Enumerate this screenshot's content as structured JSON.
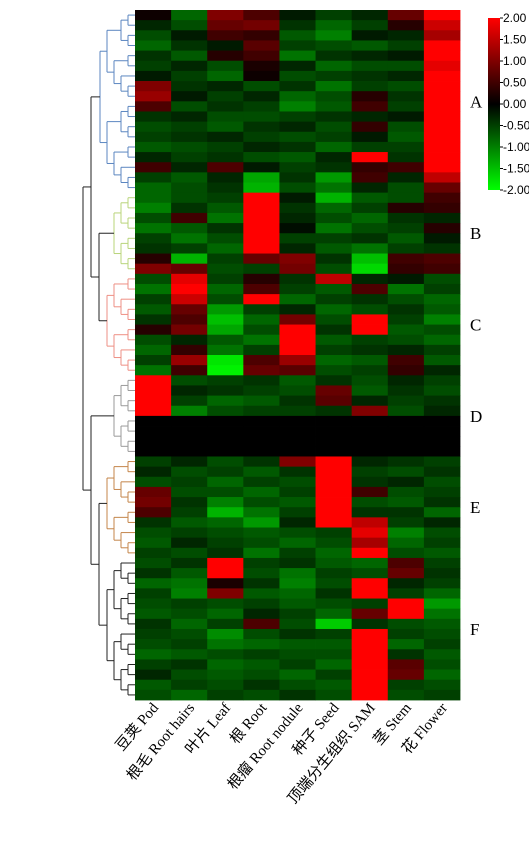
{
  "chart_data": {
    "type": "heatmap",
    "columns": [
      "豆荚 Pod",
      "根毛 Root hairs",
      "叶片 Leaf",
      "根 Root",
      "根瘤 Root nodule",
      "种子 Seed",
      "顶端分生组织 SAM",
      "茎 Stem",
      "花 Flower"
    ],
    "zlim": [
      -2,
      2
    ],
    "colors": [
      "#00ff00",
      "#000000",
      "#ff0000"
    ],
    "colorbar_ticks": [
      {
        "value": 2,
        "label": "2.00"
      },
      {
        "value": 1.5,
        "label": "1.50"
      },
      {
        "value": 1,
        "label": "1.00"
      },
      {
        "value": 0.5,
        "label": "0.50"
      },
      {
        "value": 0,
        "label": "0.00"
      },
      {
        "value": -0.5,
        "label": "-0.50"
      },
      {
        "value": -1,
        "label": "-1.00"
      },
      {
        "value": -1.5,
        "label": "-1.50"
      },
      {
        "value": -2,
        "label": "-2.00"
      }
    ],
    "clusters": [
      {
        "label": "A",
        "color": "#5b86c0"
      },
      {
        "label": "B",
        "color": "#b8d47a"
      },
      {
        "label": "C",
        "color": "#ee8f84"
      },
      {
        "label": "D",
        "color": "#9a9a9a"
      },
      {
        "label": "E",
        "color": "#c4854a"
      },
      {
        "label": "F",
        "color": "#222222"
      }
    ],
    "values": [
      [
        0.1,
        -0.8,
        1.0,
        0.6,
        -0.2,
        -0.5,
        -0.3,
        0.8,
        2.0
      ],
      [
        -0.3,
        -0.6,
        0.8,
        0.9,
        -0.4,
        -0.8,
        -0.5,
        0.3,
        1.6
      ],
      [
        -0.6,
        -0.2,
        0.5,
        0.4,
        -0.7,
        -1.0,
        -0.2,
        -0.3,
        1.3
      ],
      [
        -0.8,
        -0.4,
        -0.2,
        0.7,
        -0.5,
        -0.6,
        -0.7,
        -0.5,
        2.0
      ],
      [
        -0.4,
        -0.7,
        0.3,
        0.5,
        -0.9,
        -0.4,
        -0.3,
        -0.2,
        2.0
      ],
      [
        -0.5,
        -0.3,
        -0.6,
        0.2,
        -0.3,
        -0.8,
        -0.6,
        -0.6,
        1.8
      ],
      [
        -0.2,
        -0.5,
        -0.8,
        0.1,
        -0.6,
        -0.5,
        -0.4,
        -0.3,
        2.0
      ],
      [
        1.0,
        -0.4,
        -0.3,
        -0.6,
        -0.4,
        -0.9,
        -0.5,
        -0.6,
        2.0
      ],
      [
        1.2,
        -0.2,
        -0.5,
        -0.3,
        -0.8,
        -0.6,
        0.3,
        -0.4,
        2.0
      ],
      [
        0.6,
        -0.6,
        -0.4,
        -0.5,
        -1.0,
        -0.7,
        0.5,
        -0.5,
        2.0
      ],
      [
        -0.4,
        -0.3,
        -0.6,
        -0.6,
        -0.5,
        -0.4,
        -0.3,
        -0.2,
        2.0
      ],
      [
        -0.6,
        -0.5,
        -0.7,
        -0.4,
        -0.3,
        -0.6,
        0.4,
        -0.6,
        2.0
      ],
      [
        -0.5,
        -0.4,
        -0.3,
        -0.5,
        -0.6,
        -0.5,
        -0.2,
        -0.7,
        2.0
      ],
      [
        -0.7,
        -0.6,
        -0.5,
        -0.3,
        -0.4,
        -0.8,
        -0.5,
        -0.5,
        2.0
      ],
      [
        -0.3,
        -0.5,
        -0.4,
        -0.6,
        -0.7,
        -0.3,
        2.0,
        -0.4,
        2.0
      ],
      [
        0.5,
        -0.3,
        0.6,
        -0.2,
        -0.5,
        -0.4,
        0.4,
        0.5,
        2.0
      ],
      [
        -0.5,
        -0.7,
        -0.3,
        -1.3,
        -0.4,
        -1.2,
        0.5,
        -0.3,
        1.5
      ],
      [
        -0.8,
        -0.6,
        -0.4,
        -1.4,
        -0.6,
        -0.9,
        -0.3,
        -0.6,
        0.8
      ],
      [
        -0.8,
        -0.6,
        -0.5,
        2.0,
        -0.2,
        -1.4,
        -0.7,
        -0.6,
        0.5
      ],
      [
        -1.0,
        -0.4,
        -0.7,
        2.0,
        -0.4,
        -0.8,
        -0.5,
        0.3,
        0.4
      ],
      [
        -0.6,
        0.5,
        -0.9,
        2.0,
        -0.3,
        -0.6,
        -0.8,
        -0.4,
        -0.3
      ],
      [
        -0.9,
        -0.7,
        -0.4,
        2.0,
        -0.1,
        -0.9,
        -0.6,
        -0.5,
        0.3
      ],
      [
        -0.5,
        -0.9,
        -0.6,
        2.0,
        -0.5,
        -0.5,
        -0.4,
        -0.7,
        -0.2
      ],
      [
        -0.4,
        -0.5,
        -0.8,
        2.0,
        -0.3,
        -0.7,
        -0.9,
        -0.5,
        -0.4
      ],
      [
        0.3,
        -1.4,
        -0.5,
        0.8,
        1.0,
        -0.4,
        -1.5,
        0.5,
        0.6
      ],
      [
        1.0,
        0.8,
        -0.6,
        -0.5,
        0.9,
        -0.6,
        -1.7,
        0.4,
        0.5
      ],
      [
        -0.6,
        1.8,
        -0.5,
        0.3,
        -0.4,
        1.5,
        -0.3,
        -0.2,
        -0.6
      ],
      [
        -0.9,
        2.0,
        -0.8,
        0.6,
        -0.5,
        -0.7,
        0.6,
        -0.9,
        -0.5
      ],
      [
        -0.5,
        1.6,
        -0.6,
        2.0,
        -0.8,
        -0.5,
        -0.4,
        -0.6,
        -0.8
      ],
      [
        -0.7,
        0.8,
        -1.2,
        -0.5,
        -0.3,
        -0.8,
        -0.6,
        -0.4,
        -0.7
      ],
      [
        -0.4,
        0.6,
        -1.5,
        -0.8,
        0.9,
        -0.6,
        2.0,
        -0.5,
        -1.0
      ],
      [
        0.3,
        0.9,
        -1.3,
        -0.6,
        2.0,
        -0.4,
        2.0,
        -0.7,
        -0.6
      ],
      [
        -0.6,
        -0.3,
        -0.7,
        -0.9,
        2.0,
        -0.7,
        -0.5,
        -0.6,
        -0.8
      ],
      [
        -0.8,
        0.4,
        -0.9,
        -0.5,
        2.0,
        -0.5,
        -0.4,
        -0.3,
        -0.5
      ],
      [
        -0.5,
        1.2,
        -1.8,
        0.6,
        1.2,
        -0.8,
        -0.7,
        0.5,
        -0.7
      ],
      [
        -0.9,
        0.5,
        -1.9,
        0.8,
        0.7,
        -0.6,
        -0.5,
        0.4,
        -0.3
      ],
      [
        2.0,
        -0.6,
        -0.5,
        -0.4,
        -0.7,
        -0.4,
        -0.6,
        -0.3,
        -0.5
      ],
      [
        2.0,
        -0.3,
        -0.4,
        -0.5,
        -0.6,
        0.8,
        -0.7,
        -0.4,
        -0.6
      ],
      [
        2.0,
        -0.5,
        -0.8,
        -0.7,
        -0.4,
        0.7,
        -0.3,
        -0.5,
        -0.4
      ],
      [
        2.0,
        -1.0,
        -0.6,
        -0.5,
        -0.5,
        -0.4,
        1.0,
        -0.6,
        -0.3
      ],
      [
        0,
        0,
        0,
        0,
        0,
        0,
        0,
        0,
        0
      ],
      [
        0,
        0,
        0,
        0,
        0,
        0,
        0,
        0,
        0
      ],
      [
        0,
        0,
        0,
        0,
        0,
        0,
        0,
        0,
        0
      ],
      [
        0,
        0,
        0,
        0,
        0,
        0,
        0,
        0,
        0
      ],
      [
        -0.5,
        -0.3,
        -0.6,
        -0.4,
        1.0,
        2.0,
        -0.3,
        -0.4,
        -0.5
      ],
      [
        -0.3,
        -0.6,
        -0.5,
        -0.7,
        -0.4,
        2.0,
        -0.5,
        -0.6,
        -0.4
      ],
      [
        -0.6,
        -0.5,
        -0.8,
        -0.5,
        -0.6,
        2.0,
        -0.4,
        -0.3,
        -0.6
      ],
      [
        0.8,
        -0.6,
        -0.6,
        -0.8,
        -0.5,
        2.0,
        0.5,
        -0.6,
        -0.5
      ],
      [
        0.9,
        -0.4,
        -1.0,
        -0.6,
        -0.7,
        2.0,
        -0.6,
        -0.7,
        -0.4
      ],
      [
        0.6,
        -0.5,
        -1.4,
        -0.9,
        -0.5,
        2.0,
        -0.4,
        -0.4,
        -0.8
      ],
      [
        -0.4,
        -0.7,
        -0.8,
        -1.2,
        -0.3,
        2.0,
        1.5,
        -0.5,
        -0.3
      ],
      [
        -0.6,
        -0.5,
        -0.6,
        -0.7,
        -0.6,
        -0.5,
        1.8,
        -1.0,
        -0.6
      ],
      [
        -0.7,
        -0.3,
        -0.5,
        -0.6,
        -0.8,
        -0.6,
        1.3,
        -0.8,
        -0.5
      ],
      [
        -0.5,
        -0.6,
        -0.4,
        -0.9,
        -0.5,
        -0.8,
        2.0,
        -0.6,
        -0.7
      ],
      [
        -0.6,
        -0.4,
        2.0,
        -0.5,
        -0.4,
        -0.7,
        -0.8,
        0.6,
        -0.5
      ],
      [
        -0.4,
        -0.7,
        2.0,
        -0.6,
        -0.9,
        -0.5,
        -0.6,
        0.8,
        -0.4
      ],
      [
        -0.8,
        -0.9,
        0.2,
        -0.4,
        -1.0,
        -0.6,
        2.0,
        -0.3,
        -0.5
      ],
      [
        -0.5,
        -1.0,
        1.0,
        -0.7,
        -0.8,
        -0.4,
        2.0,
        -0.5,
        -0.8
      ],
      [
        -0.6,
        -0.5,
        -0.6,
        -0.5,
        -0.7,
        -0.6,
        -0.5,
        2.0,
        -1.2
      ],
      [
        -0.7,
        -0.6,
        -0.8,
        -0.3,
        -0.5,
        -0.8,
        0.8,
        2.0,
        -0.9
      ],
      [
        -0.4,
        -0.8,
        -0.5,
        0.6,
        -0.6,
        -1.6,
        -0.4,
        -0.6,
        -0.7
      ],
      [
        -0.5,
        -0.6,
        -1.1,
        -0.6,
        -0.4,
        -0.5,
        2.0,
        -0.5,
        -0.6
      ],
      [
        -0.6,
        -0.5,
        -0.9,
        -0.8,
        -0.7,
        -0.7,
        2.0,
        -0.8,
        -0.5
      ],
      [
        -0.8,
        -0.7,
        -0.6,
        -0.5,
        -0.6,
        -0.6,
        2.0,
        -0.4,
        -0.7
      ],
      [
        -0.5,
        -0.4,
        -0.8,
        -0.7,
        -0.5,
        -0.8,
        2.0,
        0.7,
        -0.6
      ],
      [
        -0.3,
        -0.6,
        -0.7,
        -0.6,
        -0.8,
        -0.5,
        2.0,
        0.8,
        -0.8
      ],
      [
        -0.7,
        -0.5,
        -0.6,
        -0.4,
        -0.6,
        -0.7,
        2.0,
        -0.5,
        -0.6
      ],
      [
        -0.6,
        -0.8,
        -0.5,
        -0.6,
        -0.4,
        -0.6,
        2.0,
        -0.6,
        -0.5
      ]
    ]
  }
}
